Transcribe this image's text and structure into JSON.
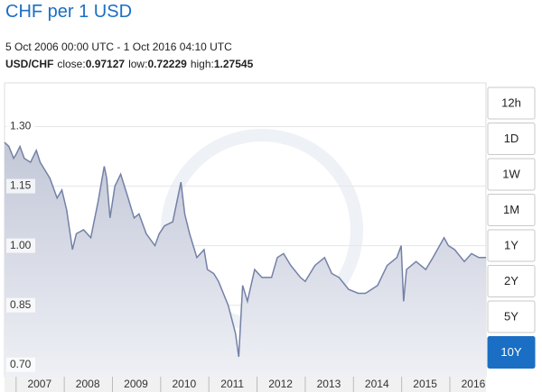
{
  "chart_data": {
    "type": "area",
    "title": "CHF per 1 USD",
    "subtitle": "5 Oct 2006 00:00 UTC - 1 Oct 2016 04:10 UTC",
    "pair": "USD/CHF",
    "stats": [
      {
        "label": "close:",
        "value": 0.97127
      },
      {
        "label": "low:",
        "value": 0.72229
      },
      {
        "label": "high:",
        "value": 1.27545
      }
    ],
    "ranges": [
      "12h",
      "1D",
      "1W",
      "1M",
      "1Y",
      "2Y",
      "5Y",
      "10Y"
    ],
    "color": "#7481a6",
    "x": [
      2006.76,
      2006.85,
      2006.95,
      2007.0,
      2007.08,
      2007.17,
      2007.3,
      2007.42,
      2007.5,
      2007.6,
      2007.7,
      2007.85,
      2007.95,
      2008.05,
      2008.17,
      2008.25,
      2008.4,
      2008.55,
      2008.7,
      2008.83,
      2008.88,
      2008.95,
      2009.05,
      2009.17,
      2009.3,
      2009.45,
      2009.55,
      2009.7,
      2009.88,
      2009.97,
      2010.08,
      2010.25,
      2010.42,
      2010.5,
      2010.6,
      2010.75,
      2010.9,
      2010.97,
      2011.1,
      2011.2,
      2011.4,
      2011.55,
      2011.62,
      2011.7,
      2011.8,
      2011.95,
      2012.1,
      2012.3,
      2012.42,
      2012.55,
      2012.7,
      2012.9,
      2013.0,
      2013.2,
      2013.4,
      2013.55,
      2013.7,
      2013.9,
      2014.1,
      2014.25,
      2014.5,
      2014.7,
      2014.9,
      2014.99,
      2015.04,
      2015.1,
      2015.3,
      2015.5,
      2015.65,
      2015.88,
      2015.97,
      2016.1,
      2016.3,
      2016.45,
      2016.6,
      2016.75
    ],
    "values": [
      1.26,
      1.25,
      1.22,
      1.23,
      1.25,
      1.22,
      1.21,
      1.24,
      1.21,
      1.19,
      1.17,
      1.12,
      1.14,
      1.09,
      0.99,
      1.03,
      1.04,
      1.02,
      1.11,
      1.2,
      1.17,
      1.07,
      1.15,
      1.18,
      1.13,
      1.07,
      1.08,
      1.03,
      1.0,
      1.03,
      1.05,
      1.06,
      1.16,
      1.08,
      1.03,
      0.97,
      0.99,
      0.94,
      0.93,
      0.91,
      0.85,
      0.78,
      0.72,
      0.9,
      0.86,
      0.94,
      0.92,
      0.92,
      0.97,
      0.98,
      0.95,
      0.92,
      0.91,
      0.95,
      0.97,
      0.93,
      0.92,
      0.89,
      0.88,
      0.88,
      0.9,
      0.95,
      0.97,
      1.0,
      0.86,
      0.94,
      0.96,
      0.94,
      0.97,
      1.02,
      1.0,
      0.99,
      0.96,
      0.98,
      0.97,
      0.97
    ],
    "xlim": [
      2006.76,
      2016.75
    ],
    "xticks": [
      2007,
      2008,
      2009,
      2010,
      2011,
      2012,
      2013,
      2014,
      2015,
      2016
    ],
    "ylim": [
      0.67,
      1.41
    ],
    "yticks": [
      {
        "value": 1.3,
        "label": "1.30"
      },
      1.15,
      {
        "value": 1.0,
        "label": "1.00"
      },
      0.85,
      {
        "value": 0.7,
        "label": "0.70"
      }
    ],
    "grid": true
  }
}
